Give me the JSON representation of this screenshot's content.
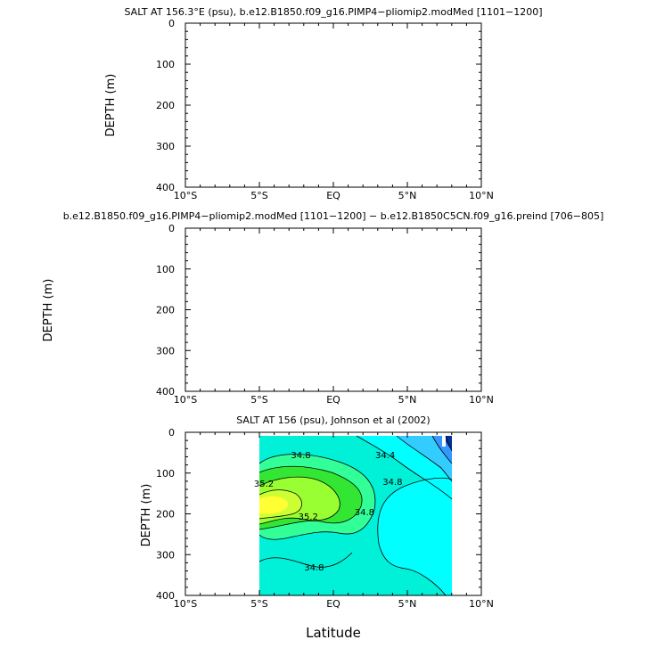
{
  "chart_data": [
    {
      "type": "heatmap",
      "title": "SALT AT 156.3°E (psu), b.e12.B1850.f09_g16.PIMP4−pliomip2.modMed [1101−1200]",
      "ylabel": "DEPTH (m)",
      "xlabel": "",
      "xlim": [
        -10,
        10
      ],
      "ylim": [
        400,
        0
      ],
      "x_ticks": [
        -10,
        -5,
        0,
        5,
        10
      ],
      "x_tick_labels": [
        "10°S",
        "5°S",
        "EQ",
        "5°N",
        "10°N"
      ],
      "y_ticks": [
        0,
        100,
        200,
        300,
        400
      ],
      "y_tick_labels": [
        "0",
        "100",
        "200",
        "300",
        "400"
      ],
      "fields": []
    },
    {
      "type": "heatmap",
      "title": "b.e12.B1850.f09_g16.PIMP4−pliomip2.modMed [1101−1200] − b.e12.B1850C5CN.f09_g16.preind [706−805]",
      "ylabel": "DEPTH (m)",
      "xlabel": "",
      "xlim": [
        -10,
        10
      ],
      "ylim": [
        400,
        0
      ],
      "x_ticks": [
        -10,
        -5,
        0,
        5,
        10
      ],
      "x_tick_labels": [
        "10°S",
        "5°S",
        "EQ",
        "5°N",
        "10°N"
      ],
      "y_ticks": [
        0,
        100,
        200,
        300,
        400
      ],
      "y_tick_labels": [
        "0",
        "100",
        "200",
        "300",
        "400"
      ],
      "fields": []
    },
    {
      "type": "heatmap",
      "title": "SALT AT 156 (psu), Johnson et al (2002)",
      "ylabel": "DEPTH (m)",
      "xlabel": "Latitude",
      "xlim": [
        -10,
        10
      ],
      "ylim": [
        400,
        0
      ],
      "x_ticks": [
        -10,
        -5,
        0,
        5,
        10
      ],
      "x_tick_labels": [
        "10°S",
        "5°S",
        "EQ",
        "5°N",
        "10°N"
      ],
      "y_ticks": [
        0,
        100,
        200,
        300,
        400
      ],
      "y_tick_labels": [
        "0",
        "100",
        "200",
        "300",
        "400"
      ],
      "data_extent": {
        "lat": [
          -5,
          8
        ],
        "depth": [
          10,
          400
        ]
      },
      "contour_labels": [
        {
          "text": "34.4",
          "lat": 3.5,
          "depth": 55
        },
        {
          "text": "34.8",
          "lat": -2.2,
          "depth": 55
        },
        {
          "text": "35.2",
          "lat": -4.7,
          "depth": 125
        },
        {
          "text": "35.2",
          "lat": -1.7,
          "depth": 205
        },
        {
          "text": "34.8",
          "lat": 4.0,
          "depth": 120
        },
        {
          "text": "34.8",
          "lat": 2.1,
          "depth": 195
        },
        {
          "text": "34.8",
          "lat": -1.3,
          "depth": 330
        }
      ],
      "contour_levels": [
        34.4,
        34.6,
        34.8,
        35.0,
        35.2,
        35.4,
        35.6
      ],
      "colors": {
        "background": "#00f0d8",
        "fresh": "#00ffff",
        "fresher": "#33ccff",
        "freshest": "#3399ff",
        "darkest": "#003399",
        "mid1": "#33ff99",
        "mid2": "#33e633",
        "mid3": "#99ff33",
        "mid4": "#ccff33",
        "max": "#ffff33"
      }
    }
  ]
}
